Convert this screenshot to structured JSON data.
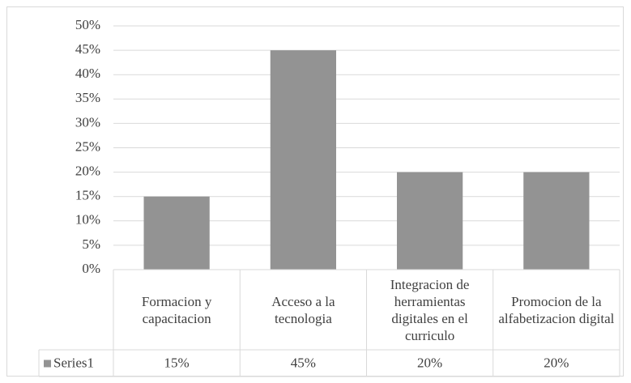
{
  "chart_data": {
    "type": "bar",
    "categories": [
      "Formacion y capacitacion",
      "Acceso a la tecnologia",
      "Integracion de herramientas digitales en el curriculo",
      "Promocion de la alfabetizacion digital"
    ],
    "series": [
      {
        "name": "Series1",
        "color": "#939393",
        "values": [
          15,
          45,
          20,
          20
        ],
        "value_labels": [
          "15%",
          "45%",
          "20%",
          "20%"
        ]
      }
    ],
    "ylim": [
      0,
      50
    ],
    "yticks": [
      {
        "value": 0,
        "label": "0%"
      },
      {
        "value": 5,
        "label": "5%"
      },
      {
        "value": 10,
        "label": "10%"
      },
      {
        "value": 15,
        "label": "15%"
      },
      {
        "value": 20,
        "label": "20%"
      },
      {
        "value": 25,
        "label": "25%"
      },
      {
        "value": 30,
        "label": "30%"
      },
      {
        "value": 35,
        "label": "35%"
      },
      {
        "value": 40,
        "label": "40%"
      },
      {
        "value": 45,
        "label": "45%"
      },
      {
        "value": 50,
        "label": "50%"
      }
    ],
    "grid": true
  }
}
